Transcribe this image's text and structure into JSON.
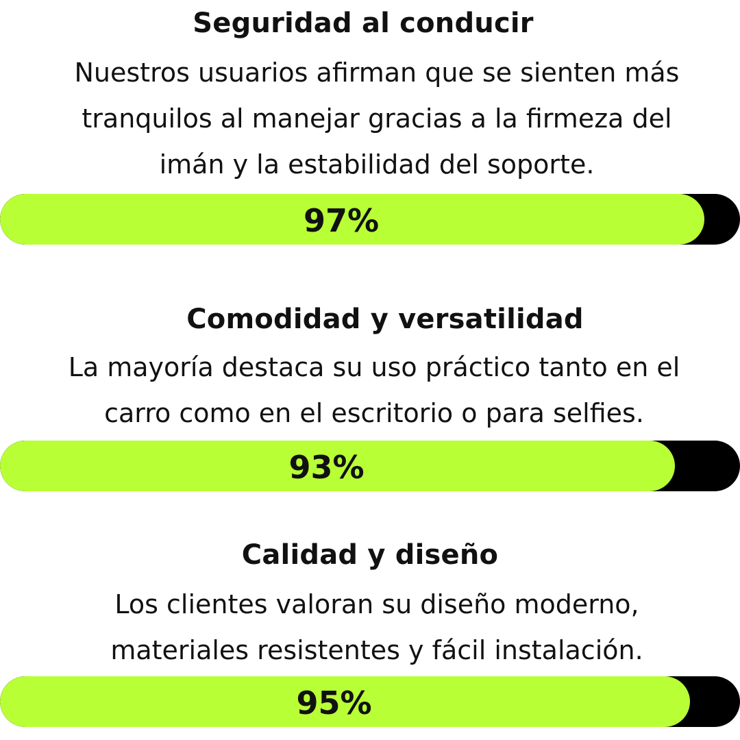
{
  "colors": {
    "bar_fill": "#b9ff36",
    "bar_track": "#000000",
    "text": "#111111"
  },
  "items": [
    {
      "title": "Seguridad al conducir",
      "description_lines": [
        "Nuestros usuarios afirman que se sienten más",
        "tranquilos al manejar gracias a la firmeza del",
        "imán y la estabilidad del soporte."
      ],
      "percent_label": "97%",
      "percent_value": 97
    },
    {
      "title": "Comodidad y versatilidad",
      "description_lines": [
        "La mayoría destaca su uso práctico tanto en el",
        "carro como en el escritorio o para selfies."
      ],
      "percent_label": "93%",
      "percent_value": 93
    },
    {
      "title": "Calidad y diseño",
      "description_lines": [
        "Los clientes valoran su diseño moderno,",
        "materiales resistentes y fácil instalación."
      ],
      "percent_label": "95%",
      "percent_value": 95
    }
  ]
}
